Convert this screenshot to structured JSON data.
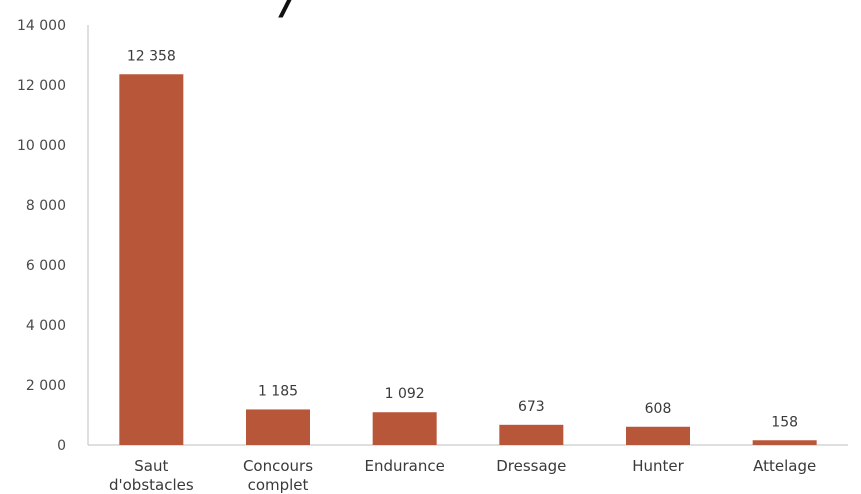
{
  "chart_data": {
    "type": "bar",
    "categories": [
      [
        "Saut",
        "d'obstacles"
      ],
      [
        "Concours",
        "complet"
      ],
      [
        "Endurance"
      ],
      [
        "Dressage"
      ],
      [
        "Hunter"
      ],
      [
        "Attelage"
      ]
    ],
    "values": [
      12358,
      1185,
      1092,
      673,
      608,
      158
    ],
    "value_labels": [
      "12 358",
      "1 185",
      "1 092",
      "673",
      "608",
      "158"
    ],
    "y_ticks": [
      0,
      2000,
      4000,
      6000,
      8000,
      10000,
      12000,
      14000
    ],
    "y_tick_labels": [
      "0",
      "2 000",
      "4 000",
      "6 000",
      "8 000",
      "10 000",
      "12 000",
      "14 000"
    ],
    "ylim": [
      0,
      14000
    ],
    "grid": false,
    "legend": "none",
    "bar_color": "#B8563A",
    "title_fragment": "/"
  }
}
